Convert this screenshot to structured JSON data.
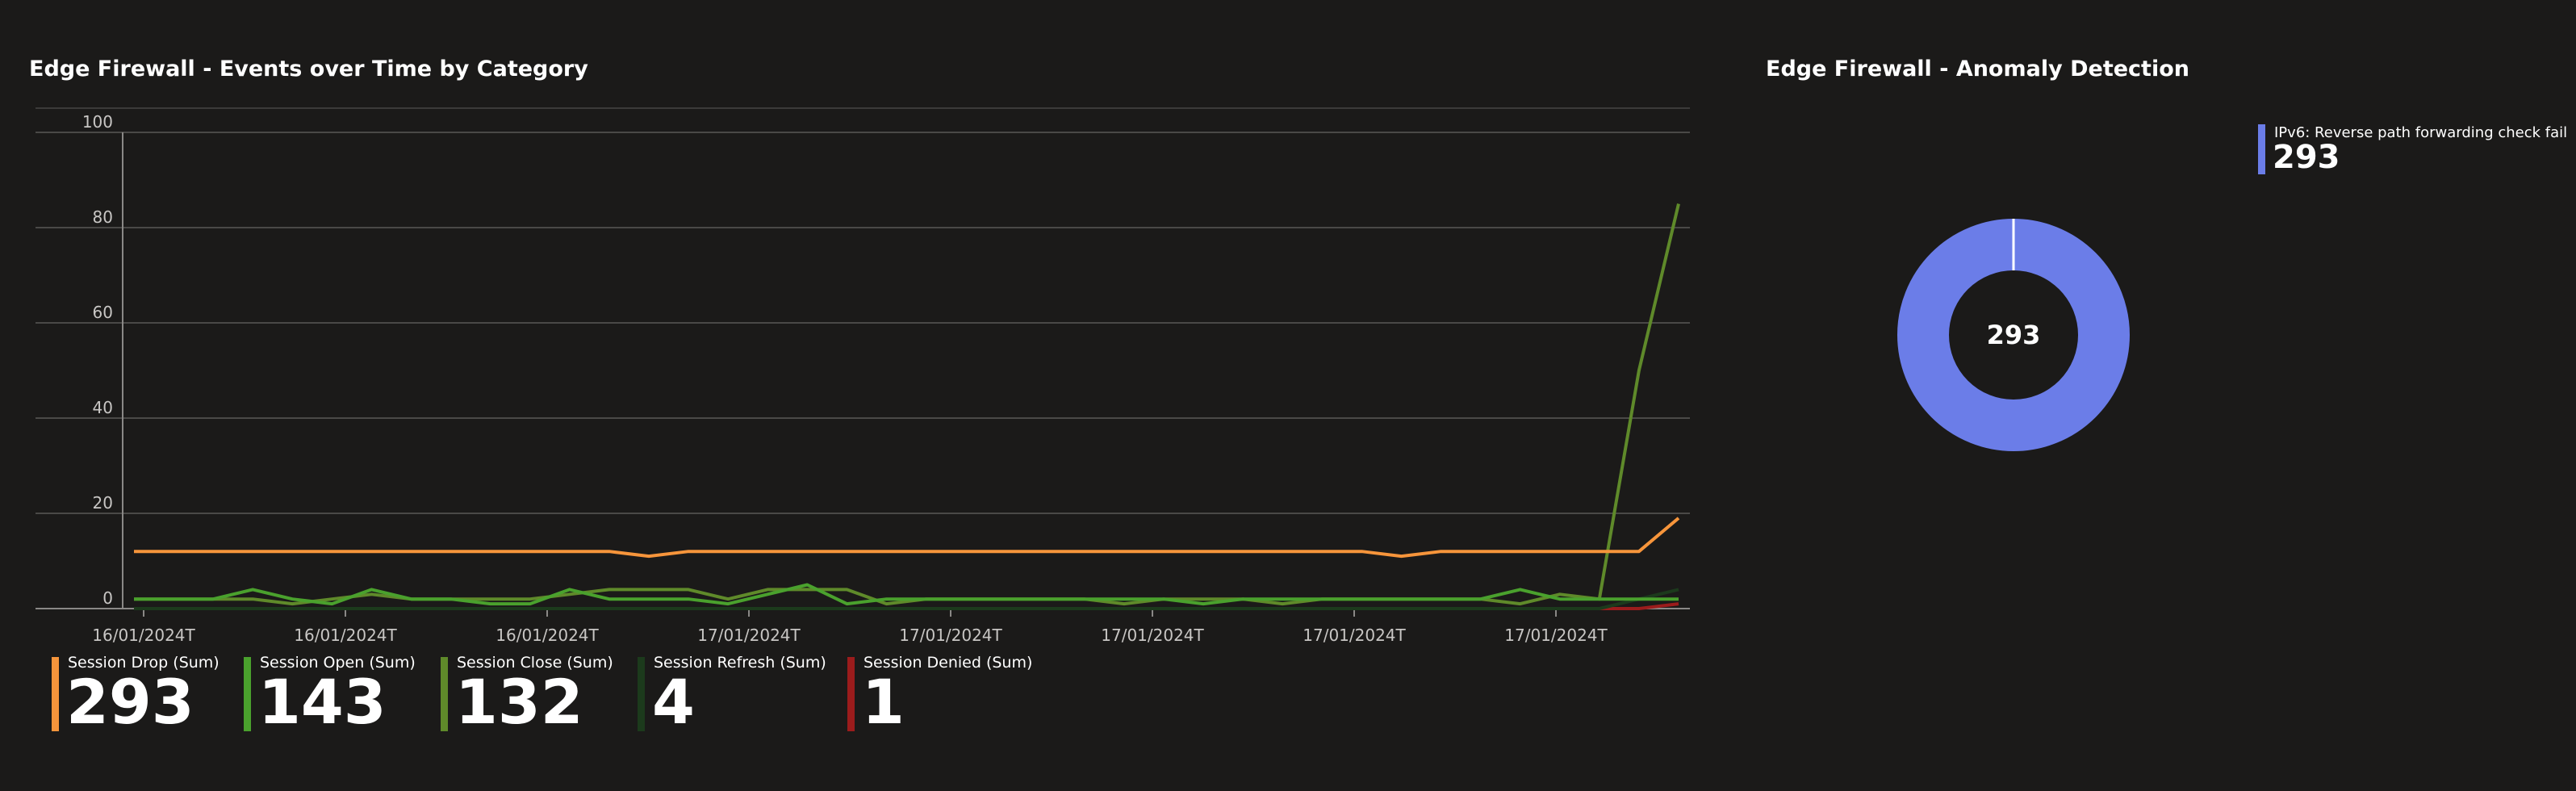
{
  "line_panel": {
    "title": "Edge Firewall - Events over Time by Category"
  },
  "donut_panel": {
    "title": "Edge Firewall - Anomaly Detection",
    "center_label": "293"
  },
  "legend": [
    {
      "name": "Session Drop (Sum)",
      "value": "293",
      "color": "#f7953b"
    },
    {
      "name": "Session Open (Sum)",
      "value": "143",
      "color": "#4aa12d"
    },
    {
      "name": "Session Close (Sum)",
      "value": "132",
      "color": "#5f8a2a"
    },
    {
      "name": "Session Refresh (Sum)",
      "value": "4",
      "color": "#1c3a1c"
    },
    {
      "name": "Session Denied (Sum)",
      "value": "1",
      "color": "#9b1c1c"
    }
  ],
  "donut_legend": {
    "name": "IPv6: Reverse path forwarding check fail",
    "value": "293",
    "color": "#6b7de8"
  },
  "chart_data": [
    {
      "type": "line",
      "title": "Edge Firewall - Events over Time by Category",
      "x_tick_labels": [
        "16/01/2024T",
        "16/01/2024T",
        "16/01/2024T",
        "17/01/2024T",
        "17/01/2024T",
        "17/01/2024T",
        "17/01/2024T",
        "17/01/2024T"
      ],
      "y_ticks": [
        0,
        20,
        40,
        60,
        80,
        100
      ],
      "ylim": [
        0,
        100
      ],
      "grid": true,
      "legend_position": "bottom",
      "series": [
        {
          "name": "Session Drop (Sum)",
          "color": "#f7953b",
          "values": [
            12,
            12,
            12,
            12,
            12,
            12,
            12,
            12,
            12,
            12,
            12,
            12,
            12,
            11,
            12,
            12,
            12,
            12,
            12,
            12,
            12,
            12,
            12,
            12,
            12,
            12,
            12,
            12,
            12,
            12,
            12,
            12,
            11,
            12,
            12,
            12,
            12,
            12,
            12,
            19
          ]
        },
        {
          "name": "Session Open (Sum)",
          "color": "#4aa12d",
          "values": [
            2,
            2,
            2,
            4,
            2,
            1,
            4,
            2,
            2,
            1,
            1,
            4,
            2,
            2,
            2,
            1,
            3,
            5,
            1,
            2,
            2,
            2,
            2,
            2,
            2,
            2,
            2,
            1,
            2,
            2,
            2,
            2,
            2,
            2,
            2,
            4,
            2,
            2,
            2,
            2
          ]
        },
        {
          "name": "Session Close (Sum)",
          "color": "#5f8a2a",
          "values": [
            2,
            2,
            2,
            2,
            1,
            2,
            3,
            2,
            2,
            2,
            2,
            3,
            4,
            4,
            4,
            2,
            4,
            4,
            4,
            1,
            2,
            2,
            2,
            2,
            2,
            1,
            2,
            2,
            2,
            1,
            2,
            2,
            2,
            2,
            2,
            1,
            3,
            2,
            50,
            85
          ]
        },
        {
          "name": "Session Refresh (Sum)",
          "color": "#1c3a1c",
          "values": [
            0,
            0,
            0,
            0,
            0,
            0,
            0,
            0,
            0,
            0,
            0,
            0,
            0,
            0,
            0,
            0,
            0,
            0,
            0,
            0,
            0,
            0,
            0,
            0,
            0,
            0,
            0,
            0,
            0,
            0,
            0,
            0,
            0,
            0,
            0,
            0,
            0,
            0,
            2,
            4
          ]
        },
        {
          "name": "Session Denied (Sum)",
          "color": "#9b1c1c",
          "values": [
            0,
            0,
            0,
            0,
            0,
            0,
            0,
            0,
            0,
            0,
            0,
            0,
            0,
            0,
            0,
            0,
            0,
            0,
            0,
            0,
            0,
            0,
            0,
            0,
            0,
            0,
            0,
            0,
            0,
            0,
            0,
            0,
            0,
            0,
            0,
            0,
            0,
            0,
            0,
            1
          ]
        }
      ]
    },
    {
      "type": "pie",
      "title": "Edge Firewall - Anomaly Detection",
      "categories": [
        "IPv6: Reverse path forwarding check fail"
      ],
      "values": [
        293
      ],
      "colors": [
        "#6b7de8"
      ],
      "center_label": "293",
      "legend_position": "top-right"
    }
  ]
}
